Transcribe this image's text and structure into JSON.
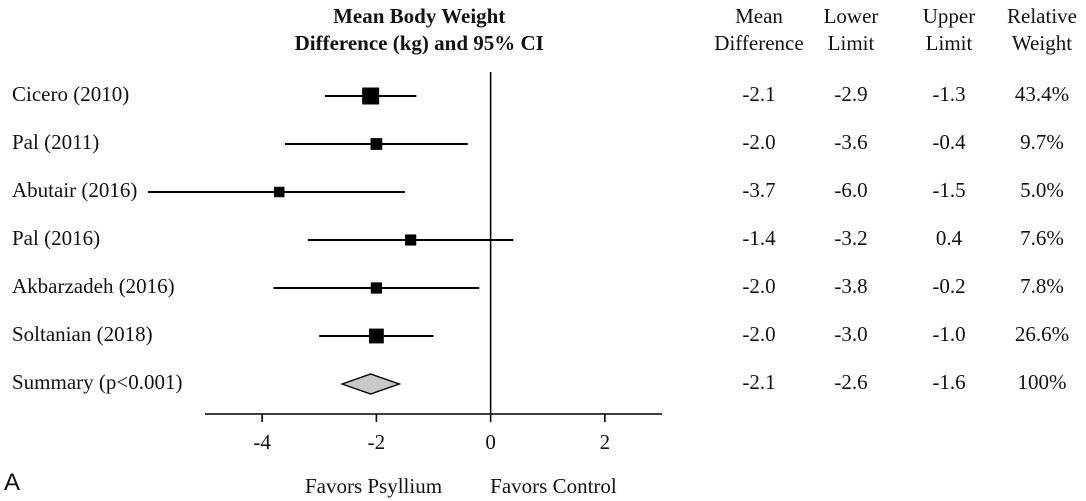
{
  "chart_data": {
    "type": "forest",
    "panel_label": "A",
    "title_lines": [
      "Mean Body Weight",
      "Difference (kg) and 95% CI"
    ],
    "column_headers": [
      {
        "lines": [
          "Mean",
          "Difference"
        ]
      },
      {
        "lines": [
          "Lower",
          "Limit"
        ]
      },
      {
        "lines": [
          "Upper",
          "Limit"
        ]
      },
      {
        "lines": [
          "Relative",
          "Weight"
        ]
      }
    ],
    "studies": [
      {
        "label": "Cicero (2010)",
        "mean": -2.1,
        "lower": -2.9,
        "upper": -1.3,
        "weight": 43.4,
        "mean_text": "-2.1",
        "lower_text": "-2.9",
        "upper_text": "-1.3",
        "weight_text": "43.4%"
      },
      {
        "label": "Pal (2011)",
        "mean": -2.0,
        "lower": -3.6,
        "upper": -0.4,
        "weight": 9.7,
        "mean_text": "-2.0",
        "lower_text": "-3.6",
        "upper_text": "-0.4",
        "weight_text": "9.7%"
      },
      {
        "label": "Abutair (2016)",
        "mean": -3.7,
        "lower": -6.0,
        "upper": -1.5,
        "weight": 5.0,
        "mean_text": "-3.7",
        "lower_text": "-6.0",
        "upper_text": "-1.5",
        "weight_text": "5.0%"
      },
      {
        "label": "Pal (2016)",
        "mean": -1.4,
        "lower": -3.2,
        "upper": 0.4,
        "weight": 7.6,
        "mean_text": "-1.4",
        "lower_text": "-3.2",
        "upper_text": "0.4",
        "weight_text": "7.6%"
      },
      {
        "label": "Akbarzadeh (2016)",
        "mean": -2.0,
        "lower": -3.8,
        "upper": -0.2,
        "weight": 7.8,
        "mean_text": "-2.0",
        "lower_text": "-3.8",
        "upper_text": "-0.2",
        "weight_text": "7.8%"
      },
      {
        "label": "Soltanian (2018)",
        "mean": -2.0,
        "lower": -3.0,
        "upper": -1.0,
        "weight": 26.6,
        "mean_text": "-2.0",
        "lower_text": "-3.0",
        "upper_text": "-1.0",
        "weight_text": "26.6%"
      }
    ],
    "summary": {
      "label": "Summary (p<0.001)",
      "mean": -2.1,
      "lower": -2.6,
      "upper": -1.6,
      "mean_text": "-2.1",
      "lower_text": "-2.6",
      "upper_text": "-1.6",
      "weight_text": "100%"
    },
    "xlim": [
      -5,
      3
    ],
    "x_ticks": [
      -4,
      -2,
      0,
      2
    ],
    "x_tick_labels": [
      "-4",
      "-2",
      "0",
      "2"
    ],
    "reference_line": 0,
    "favors_left": "Favors Psyllium",
    "favors_right": "Favors Control",
    "colors": {
      "marker": "#000000",
      "summary_fill": "#c8c8c8",
      "summary_stroke": "#000000",
      "text": "#111111"
    }
  }
}
